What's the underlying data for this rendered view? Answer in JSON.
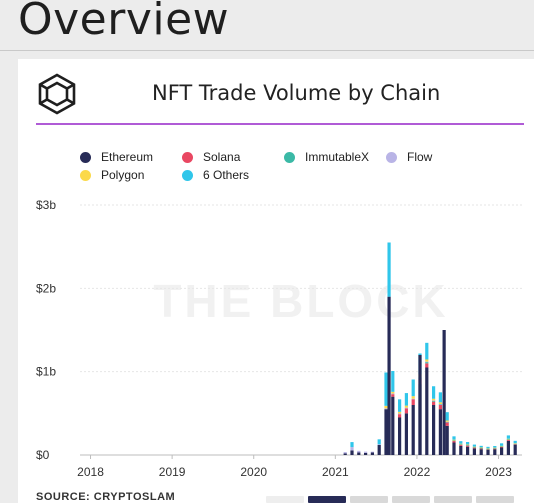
{
  "page": {
    "title": "Overview"
  },
  "card": {
    "title": "NFT Trade Volume by Chain",
    "watermark": "THE BLOCK",
    "source": "SOURCE: CRYPTOSLAM"
  },
  "range_buttons": [
    {
      "active": false,
      "faint": true
    },
    {
      "active": true,
      "faint": false
    },
    {
      "active": false,
      "faint": false
    },
    {
      "active": false,
      "faint": false
    },
    {
      "active": false,
      "faint": false
    },
    {
      "active": false,
      "faint": false
    }
  ],
  "colors": {
    "accent_rule": "#b05bd6",
    "Ethereum": "#272b57",
    "Solana": "#e94762",
    "ImmutableX": "#3bb9a6",
    "Flow": "#b9b4e6",
    "Polygon": "#fbd94a",
    "6 Others": "#30c6ea"
  },
  "chart_data": {
    "type": "bar",
    "stacked": true,
    "title": "NFT Trade Volume by Chain",
    "legend": [
      "Ethereum",
      "Solana",
      "ImmutableX",
      "Flow",
      "Polygon",
      "6 Others"
    ],
    "legend_position": "top-left",
    "grid": true,
    "x_ticks": [
      "2018",
      "2019",
      "2020",
      "2021",
      "2022",
      "2023"
    ],
    "y_ticks": [
      "$0",
      "$1b",
      "$2b",
      "$3b"
    ],
    "ylim": [
      0,
      3000000000
    ],
    "xlim": [
      "2017-11",
      "2023-04"
    ],
    "granularity": "daily",
    "series": [
      {
        "name": "Ethereum",
        "values": [
          [
            "2021-02",
            20000000
          ],
          [
            "2021-03",
            55000000
          ],
          [
            "2021-04",
            30000000
          ],
          [
            "2021-05",
            25000000
          ],
          [
            "2021-06",
            30000000
          ],
          [
            "2021-07",
            120000000
          ],
          [
            "2021-08",
            550000000
          ],
          [
            "2021-08-29",
            1900000000
          ],
          [
            "2021-09",
            700000000
          ],
          [
            "2021-10",
            450000000
          ],
          [
            "2021-11",
            500000000
          ],
          [
            "2021-12",
            600000000
          ],
          [
            "2022-01",
            850000000
          ],
          [
            "2022-01-15",
            1200000000
          ],
          [
            "2022-02",
            1050000000
          ],
          [
            "2022-03",
            600000000
          ],
          [
            "2022-04",
            550000000
          ],
          [
            "2022-05-01",
            1500000000
          ],
          [
            "2022-05",
            350000000
          ],
          [
            "2022-06",
            150000000
          ],
          [
            "2022-07",
            110000000
          ],
          [
            "2022-08",
            100000000
          ],
          [
            "2022-09",
            80000000
          ],
          [
            "2022-10",
            70000000
          ],
          [
            "2022-11",
            60000000
          ],
          [
            "2022-12",
            70000000
          ],
          [
            "2023-01",
            90000000
          ],
          [
            "2023-02",
            170000000
          ],
          [
            "2023-03",
            120000000
          ]
        ]
      },
      {
        "name": "Solana",
        "values": [
          [
            "2021-09",
            30000000
          ],
          [
            "2021-10",
            40000000
          ],
          [
            "2021-11",
            60000000
          ],
          [
            "2021-12",
            70000000
          ],
          [
            "2022-01",
            60000000
          ],
          [
            "2022-02",
            50000000
          ],
          [
            "2022-03",
            40000000
          ],
          [
            "2022-04",
            50000000
          ],
          [
            "2022-05",
            40000000
          ],
          [
            "2022-06",
            20000000
          ],
          [
            "2022-07",
            15000000
          ],
          [
            "2022-08",
            15000000
          ],
          [
            "2022-09",
            12000000
          ],
          [
            "2022-10",
            12000000
          ],
          [
            "2022-11",
            10000000
          ],
          [
            "2022-12",
            10000000
          ],
          [
            "2023-01",
            12000000
          ],
          [
            "2023-02",
            15000000
          ],
          [
            "2023-03",
            12000000
          ]
        ]
      },
      {
        "name": "ImmutableX",
        "values": [
          [
            "2022-01",
            20000000
          ],
          [
            "2022-02",
            15000000
          ],
          [
            "2022-03",
            10000000
          ],
          [
            "2022-04",
            8000000
          ],
          [
            "2022-05",
            6000000
          ],
          [
            "2022-06",
            4000000
          ],
          [
            "2022-07",
            3000000
          ],
          [
            "2022-08",
            3000000
          ],
          [
            "2022-09",
            2000000
          ],
          [
            "2022-10",
            2000000
          ],
          [
            "2022-11",
            2000000
          ],
          [
            "2022-12",
            2000000
          ],
          [
            "2023-01",
            2000000
          ],
          [
            "2023-02",
            2000000
          ],
          [
            "2023-03",
            2000000
          ]
        ]
      },
      {
        "name": "Flow",
        "values": [
          [
            "2021-02",
            15000000
          ],
          [
            "2021-03",
            40000000
          ],
          [
            "2021-04",
            20000000
          ],
          [
            "2021-05",
            15000000
          ],
          [
            "2021-06",
            10000000
          ],
          [
            "2021-07",
            8000000
          ],
          [
            "2021-08",
            10000000
          ],
          [
            "2021-09",
            8000000
          ],
          [
            "2021-10",
            8000000
          ],
          [
            "2021-11",
            8000000
          ],
          [
            "2021-12",
            6000000
          ],
          [
            "2022-01",
            8000000
          ],
          [
            "2022-02",
            6000000
          ],
          [
            "2022-03",
            5000000
          ],
          [
            "2022-04",
            4000000
          ],
          [
            "2022-05",
            3000000
          ]
        ]
      },
      {
        "name": "Polygon",
        "values": [
          [
            "2021-08",
            30000000
          ],
          [
            "2021-09",
            20000000
          ],
          [
            "2021-10",
            20000000
          ],
          [
            "2021-11",
            25000000
          ],
          [
            "2021-12",
            30000000
          ],
          [
            "2022-01",
            30000000
          ],
          [
            "2022-02",
            25000000
          ],
          [
            "2022-03",
            20000000
          ],
          [
            "2022-04",
            20000000
          ],
          [
            "2022-05",
            15000000
          ],
          [
            "2022-06",
            10000000
          ],
          [
            "2022-07",
            8000000
          ],
          [
            "2022-08",
            8000000
          ],
          [
            "2022-09",
            6000000
          ],
          [
            "2022-10",
            6000000
          ],
          [
            "2022-11",
            6000000
          ],
          [
            "2022-12",
            6000000
          ],
          [
            "2023-01",
            6000000
          ],
          [
            "2023-02",
            8000000
          ],
          [
            "2023-03",
            6000000
          ]
        ]
      },
      {
        "name": "6 Others",
        "values": [
          [
            "2021-03",
            60000000
          ],
          [
            "2021-07",
            60000000
          ],
          [
            "2021-08",
            400000000
          ],
          [
            "2021-08-29",
            650000000
          ],
          [
            "2021-09",
            250000000
          ],
          [
            "2021-10",
            150000000
          ],
          [
            "2021-11",
            150000000
          ],
          [
            "2021-12",
            200000000
          ],
          [
            "2022-01",
            250000000
          ],
          [
            "2022-02",
            200000000
          ],
          [
            "2022-03",
            150000000
          ],
          [
            "2022-04",
            120000000
          ],
          [
            "2022-05",
            100000000
          ],
          [
            "2022-06",
            40000000
          ],
          [
            "2022-07",
            30000000
          ],
          [
            "2022-08",
            30000000
          ],
          [
            "2022-09",
            25000000
          ],
          [
            "2022-10",
            20000000
          ],
          [
            "2022-11",
            20000000
          ],
          [
            "2022-12",
            20000000
          ],
          [
            "2023-01",
            30000000
          ],
          [
            "2023-02",
            40000000
          ],
          [
            "2023-03",
            30000000
          ]
        ]
      }
    ]
  }
}
